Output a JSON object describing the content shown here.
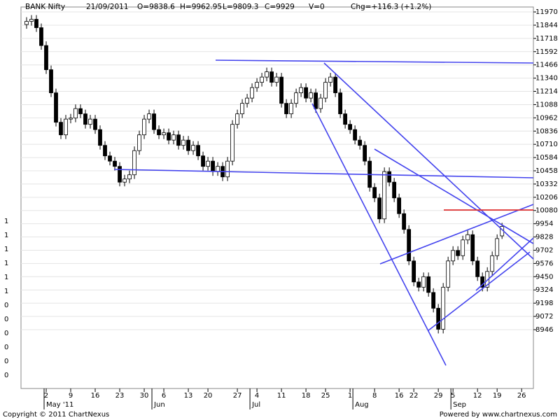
{
  "chart_data": {
    "type": "candlestick",
    "title": "BANK Nifty",
    "stats": [
      "21/09/2011",
      "O=9838.6",
      "H=9962.95",
      "L=9809.3",
      "C=9929",
      "V=0",
      "Chg=+116.3 (+1.2%)"
    ],
    "footer_left": "Copyright © 2011 ChartNexus",
    "footer_right": "Powered by www.chartnexus.com",
    "left_axis_labels": [
      "1",
      "1",
      "1",
      "1",
      "1",
      "1",
      "0",
      "0",
      "0",
      "0",
      "0",
      "0"
    ],
    "xlim": [
      -1.14,
      103.4
    ],
    "xticks": [
      {
        "value": 4,
        "label": "2"
      },
      {
        "value": 9,
        "label": "9"
      },
      {
        "value": 14,
        "label": "16"
      },
      {
        "value": 19,
        "label": "23"
      },
      {
        "value": 24,
        "label": "30"
      },
      {
        "value": 28,
        "label": "6"
      },
      {
        "value": 33,
        "label": "13"
      },
      {
        "value": 37,
        "label": "20"
      },
      {
        "value": 43,
        "label": "27"
      },
      {
        "value": 47,
        "label": "4"
      },
      {
        "value": 52,
        "label": "11"
      },
      {
        "value": 57,
        "label": "18"
      },
      {
        "value": 61,
        "label": "25"
      },
      {
        "value": 66,
        "label": "1"
      },
      {
        "value": 71,
        "label": "8"
      },
      {
        "value": 76,
        "label": "16"
      },
      {
        "value": 79,
        "label": "22"
      },
      {
        "value": 84,
        "label": "29"
      },
      {
        "value": 87,
        "label": "5"
      },
      {
        "value": 92,
        "label": "12"
      },
      {
        "value": 96,
        "label": "19"
      },
      {
        "value": 101,
        "label": "26"
      }
    ],
    "months": [
      {
        "value": 4,
        "label": "May '11"
      },
      {
        "value": 26,
        "label": "Jun"
      },
      {
        "value": 46,
        "label": "Jul"
      },
      {
        "value": 67,
        "label": "Aug"
      },
      {
        "value": 87,
        "label": "Sep"
      }
    ],
    "ylim": [
      8386,
      12017
    ],
    "yticks": [
      11970,
      11844,
      11718,
      11592,
      11466,
      11340,
      11214,
      11088,
      10962,
      10836,
      10710,
      10584,
      10458,
      10332,
      10206,
      10080,
      9954,
      9828,
      9702,
      9576,
      9450,
      9324,
      9198,
      9072,
      8946
    ],
    "grid": true,
    "up_color": "#ffffff",
    "down_color": "#000000",
    "open": [
      11850,
      11880,
      11900,
      11820,
      11650,
      11420,
      11200,
      10920,
      10800,
      10950,
      10960,
      11050,
      11000,
      10900,
      10950,
      10850,
      10700,
      10600,
      10550,
      10500,
      10350,
      10380,
      10420,
      10650,
      10800,
      10950,
      11000,
      10850,
      10800,
      10820,
      10750,
      10800,
      10700,
      10750,
      10650,
      10700,
      10600,
      10500,
      10550,
      10450,
      10500,
      10400,
      10550,
      10900,
      11000,
      11100,
      11150,
      11250,
      11300,
      11350,
      11400,
      11300,
      11350,
      11100,
      11000,
      11100,
      11200,
      11250,
      11150,
      11200,
      11050,
      11150,
      11300,
      11350,
      11200,
      11000,
      10900,
      10850,
      10750,
      10700,
      10550,
      10300,
      10200,
      10000,
      10450,
      10350,
      10200,
      10050,
      9900,
      9600,
      9400,
      9350,
      9450,
      9300,
      9150,
      8950,
      9350,
      9600,
      9700,
      9650,
      9800,
      9850,
      9600,
      9450,
      9350,
      9500,
      9650,
      9838.6
    ],
    "high": [
      11920,
      11940,
      11940,
      11860,
      11690,
      11460,
      11240,
      10960,
      10990,
      11000,
      11090,
      11090,
      11040,
      10990,
      10990,
      10890,
      10740,
      10640,
      10590,
      10540,
      10420,
      10460,
      10690,
      10840,
      10990,
      11040,
      11040,
      10890,
      10860,
      10860,
      10840,
      10840,
      10790,
      10790,
      10740,
      10740,
      10640,
      10590,
      10590,
      10540,
      10540,
      10590,
      10940,
      11040,
      11140,
      11190,
      11290,
      11340,
      11390,
      11440,
      11440,
      11390,
      11390,
      11140,
      11140,
      11240,
      11290,
      11290,
      11240,
      11240,
      11190,
      11340,
      11390,
      11390,
      11240,
      11040,
      10940,
      10890,
      10790,
      10740,
      10590,
      10340,
      10240,
      10490,
      10490,
      10390,
      10240,
      10090,
      9940,
      9640,
      9440,
      9490,
      9490,
      9340,
      9190,
      9390,
      9640,
      9740,
      9740,
      9840,
      9890,
      9890,
      9640,
      9490,
      9540,
      9690,
      9852.7,
      9962.95
    ],
    "low": [
      11810,
      11840,
      11780,
      11610,
      11380,
      11160,
      10880,
      10760,
      10760,
      10910,
      10920,
      10960,
      10860,
      10860,
      10810,
      10660,
      10560,
      10510,
      10460,
      10310,
      10310,
      10340,
      10380,
      10610,
      10760,
      10910,
      10810,
      10760,
      10760,
      10710,
      10710,
      10660,
      10660,
      10610,
      10610,
      10560,
      10460,
      10460,
      10410,
      10410,
      10360,
      10360,
      10510,
      10860,
      10960,
      11060,
      11110,
      11210,
      11260,
      11310,
      11260,
      11260,
      11060,
      10960,
      10960,
      11060,
      11160,
      11110,
      11110,
      11010,
      11010,
      11110,
      11260,
      11160,
      10960,
      10860,
      10810,
      10710,
      10660,
      10510,
      10260,
      10160,
      9960,
      9960,
      10310,
      10160,
      10010,
      9860,
      9560,
      9360,
      9310,
      9310,
      9260,
      9110,
      8910,
      8910,
      9310,
      9560,
      9610,
      9610,
      9760,
      9560,
      9410,
      9310,
      9310,
      9460,
      9610,
      9809.3
    ],
    "close": [
      11880,
      11900,
      11820,
      11650,
      11420,
      11200,
      10920,
      10800,
      10950,
      10960,
      11050,
      11000,
      10900,
      10950,
      10850,
      10700,
      10600,
      10550,
      10500,
      10350,
      10380,
      10420,
      10650,
      10800,
      10950,
      11000,
      10850,
      10800,
      10820,
      10750,
      10800,
      10700,
      10750,
      10650,
      10700,
      10600,
      10500,
      10550,
      10450,
      10500,
      10400,
      10550,
      10900,
      11000,
      11100,
      11150,
      11250,
      11300,
      11350,
      11400,
      11300,
      11350,
      11100,
      11000,
      11100,
      11200,
      11250,
      11150,
      11200,
      11050,
      11150,
      11300,
      11350,
      11200,
      11000,
      10900,
      10850,
      10750,
      10700,
      10550,
      10300,
      10200,
      10000,
      10450,
      10350,
      10200,
      10050,
      9900,
      9600,
      9400,
      9350,
      9450,
      9300,
      9150,
      8950,
      9350,
      9600,
      9700,
      9650,
      9800,
      9850,
      9600,
      9450,
      9350,
      9500,
      9650,
      9812.7,
      9929
    ]
  }
}
